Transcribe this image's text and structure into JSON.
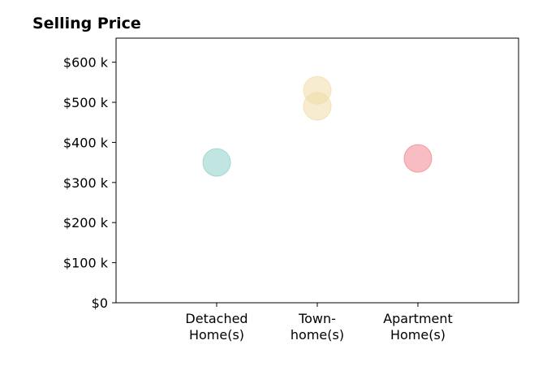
{
  "chart_data": {
    "type": "scatter",
    "title": "Selling Price",
    "xlabel": "",
    "ylabel": "",
    "categories": [
      [
        "Detached",
        "Home(s)"
      ],
      [
        "Town-",
        "home(s)"
      ],
      [
        "Apartment",
        "Home(s)"
      ]
    ],
    "y_ticks": [
      "$0",
      "$100 k",
      "$200 k",
      "$300 k",
      "$400 k",
      "$500 k",
      "$600 k"
    ],
    "y_tick_values": [
      0,
      100000,
      200000,
      300000,
      400000,
      500000,
      600000
    ],
    "ylim": [
      0,
      660000
    ],
    "xlim": [
      0,
      4
    ],
    "grid": false,
    "points": [
      {
        "category_index": 0,
        "value": 350000,
        "color": "#8ecfc9"
      },
      {
        "category_index": 1,
        "value": 530000,
        "color": "#f1dca7"
      },
      {
        "category_index": 1,
        "value": 490000,
        "color": "#f1dca7"
      },
      {
        "category_index": 2,
        "value": 360000,
        "color": "#f0868f"
      }
    ]
  }
}
